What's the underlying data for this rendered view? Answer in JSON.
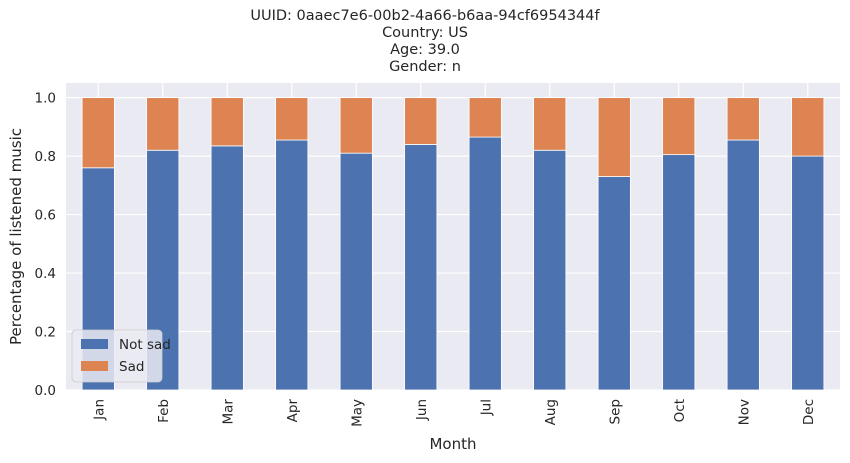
{
  "chart_data": {
    "type": "bar",
    "stacked": true,
    "title_lines": [
      "UUID: 0aaec7e6-00b2-4a66-b6aa-94cf6954344f",
      "Country: US",
      "Age: 39.0",
      "Gender: n"
    ],
    "xlabel": "Month",
    "ylabel": "Percentage of listened music",
    "categories": [
      "Jan",
      "Feb",
      "Mar",
      "Apr",
      "May",
      "Jun",
      "Jul",
      "Aug",
      "Sep",
      "Oct",
      "Nov",
      "Dec"
    ],
    "series": [
      {
        "name": "Not sad",
        "color": "#4c72b0",
        "values": [
          0.76,
          0.82,
          0.835,
          0.855,
          0.81,
          0.84,
          0.865,
          0.82,
          0.73,
          0.805,
          0.855,
          0.8
        ]
      },
      {
        "name": "Sad",
        "color": "#dd8452",
        "values": [
          0.24,
          0.18,
          0.165,
          0.145,
          0.19,
          0.16,
          0.135,
          0.18,
          0.27,
          0.195,
          0.145,
          0.2
        ]
      }
    ],
    "ylim": [
      0,
      1.05
    ],
    "yticks": [
      "0.0",
      "0.2",
      "0.4",
      "0.6",
      "0.8",
      "1.0"
    ],
    "grid": true,
    "legend_position": "lower-left",
    "background": "#eaeaf2"
  }
}
